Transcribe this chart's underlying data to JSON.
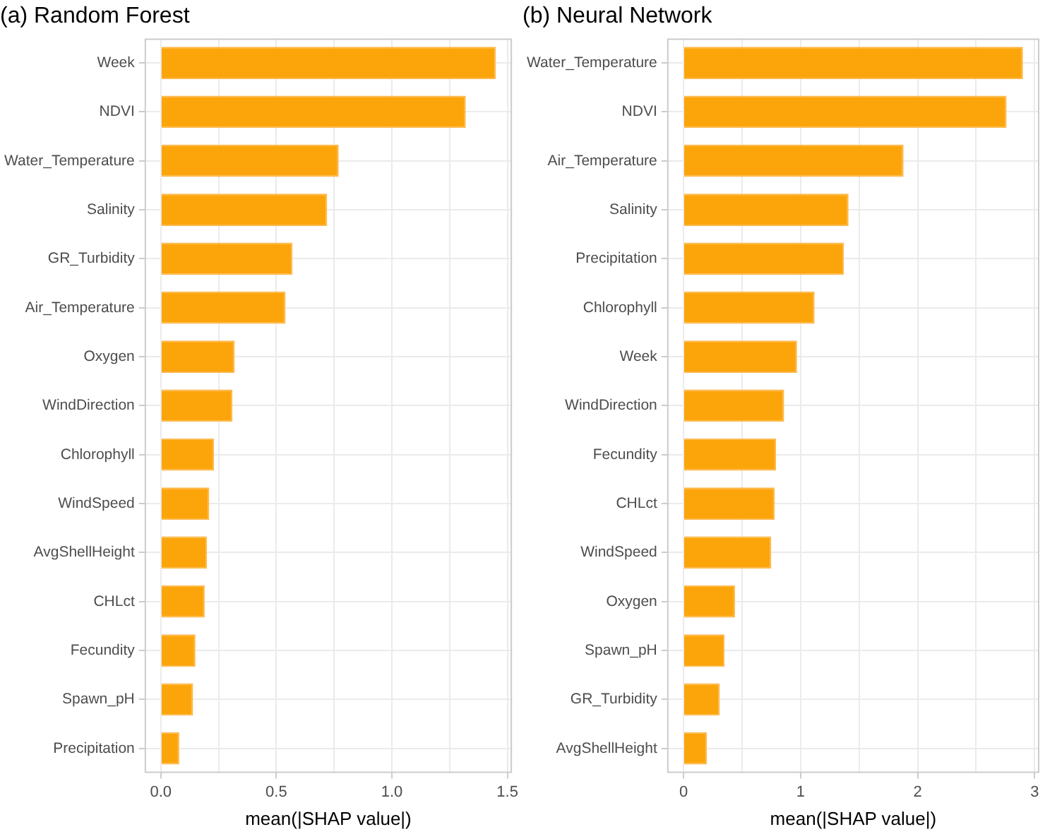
{
  "chart_data": [
    {
      "type": "bar",
      "orientation": "horizontal",
      "title": "(a) Random Forest",
      "xlabel": "mean(|SHAP value|)",
      "categories": [
        "Week",
        "NDVI",
        "Water_Temperature",
        "Salinity",
        "GR_Turbidity",
        "Air_Temperature",
        "Oxygen",
        "WindDirection",
        "Chlorophyll",
        "WindSpeed",
        "AvgShellHeight",
        "CHLct",
        "Fecundity",
        "Spawn_pH",
        "Precipitation"
      ],
      "values": [
        1.45,
        1.32,
        0.77,
        0.72,
        0.57,
        0.54,
        0.32,
        0.31,
        0.23,
        0.21,
        0.2,
        0.19,
        0.15,
        0.14,
        0.08
      ],
      "color": "#fca50a",
      "xlim": [
        -0.07,
        1.52
      ],
      "xticks": [
        {
          "value": 0,
          "label": "0.0"
        },
        {
          "value": 0.25,
          "label": null
        },
        {
          "value": 0.5,
          "label": "0.5"
        },
        {
          "value": 0.75,
          "label": null
        },
        {
          "value": 1,
          "label": "1.0"
        },
        {
          "value": 1.25,
          "label": null
        },
        {
          "value": 1.5,
          "label": "1.5"
        }
      ],
      "grid": true
    },
    {
      "type": "bar",
      "orientation": "horizontal",
      "title": "(b) Neural Network",
      "xlabel": "mean(|SHAP value|)",
      "categories": [
        "Water_Temperature",
        "NDVI",
        "Air_Temperature",
        "Salinity",
        "Precipitation",
        "Chlorophyll",
        "Week",
        "WindDirection",
        "Fecundity",
        "CHLct",
        "WindSpeed",
        "Oxygen",
        "Spawn_pH",
        "GR_Turbidity",
        "AvgShellHeight"
      ],
      "values": [
        2.9,
        2.76,
        1.88,
        1.41,
        1.37,
        1.12,
        0.97,
        0.86,
        0.79,
        0.78,
        0.75,
        0.44,
        0.35,
        0.31,
        0.2
      ],
      "color": "#fca50a",
      "xlim": [
        -0.14,
        3.04
      ],
      "xticks": [
        0,
        {
          "value": 0.5,
          "label": null
        },
        1,
        {
          "value": 1.5,
          "label": null
        },
        2,
        {
          "value": 2.5,
          "label": null
        },
        3
      ],
      "grid": true
    }
  ]
}
